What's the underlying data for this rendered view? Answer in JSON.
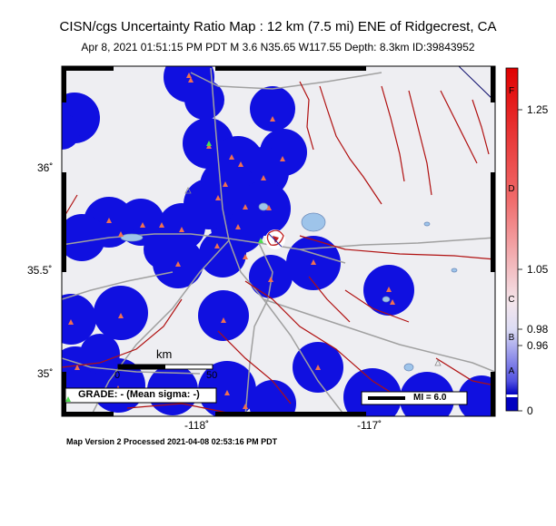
{
  "title": "CISN/cgs Uncertainty Ratio Map : 12 km (7.5 mi) ENE of Ridgecrest, CA",
  "subtitle": "Apr  8, 2021 01:51:15 PM PDT   M 3.6   N35.65 W117.55   Depth: 8.3km   ID:39843952",
  "footer": "Map Version 2 Processed 2021-04-08 02:53:16 PM PDT",
  "lat_labels": [
    "36˚",
    "35.5˚",
    "35˚"
  ],
  "lon_labels": [
    "-118˚",
    "-117˚"
  ],
  "scale_bar": {
    "unit": "km",
    "ticks": [
      "0",
      "50"
    ]
  },
  "grade_box": "GRADE: - (Mean sigma: -)",
  "mi_legend": "MI = 6.0",
  "colorbar": {
    "values": [
      "1.25",
      "1.05",
      "0.98",
      "0.96",
      "0"
    ],
    "letters": [
      "F",
      "D",
      "C",
      "B",
      "A"
    ]
  },
  "colors": {
    "blob": "#1010e0",
    "fault": "#b01010",
    "road": "#a0a0a0",
    "station": "#f07050",
    "land": "#eeeef2"
  }
}
